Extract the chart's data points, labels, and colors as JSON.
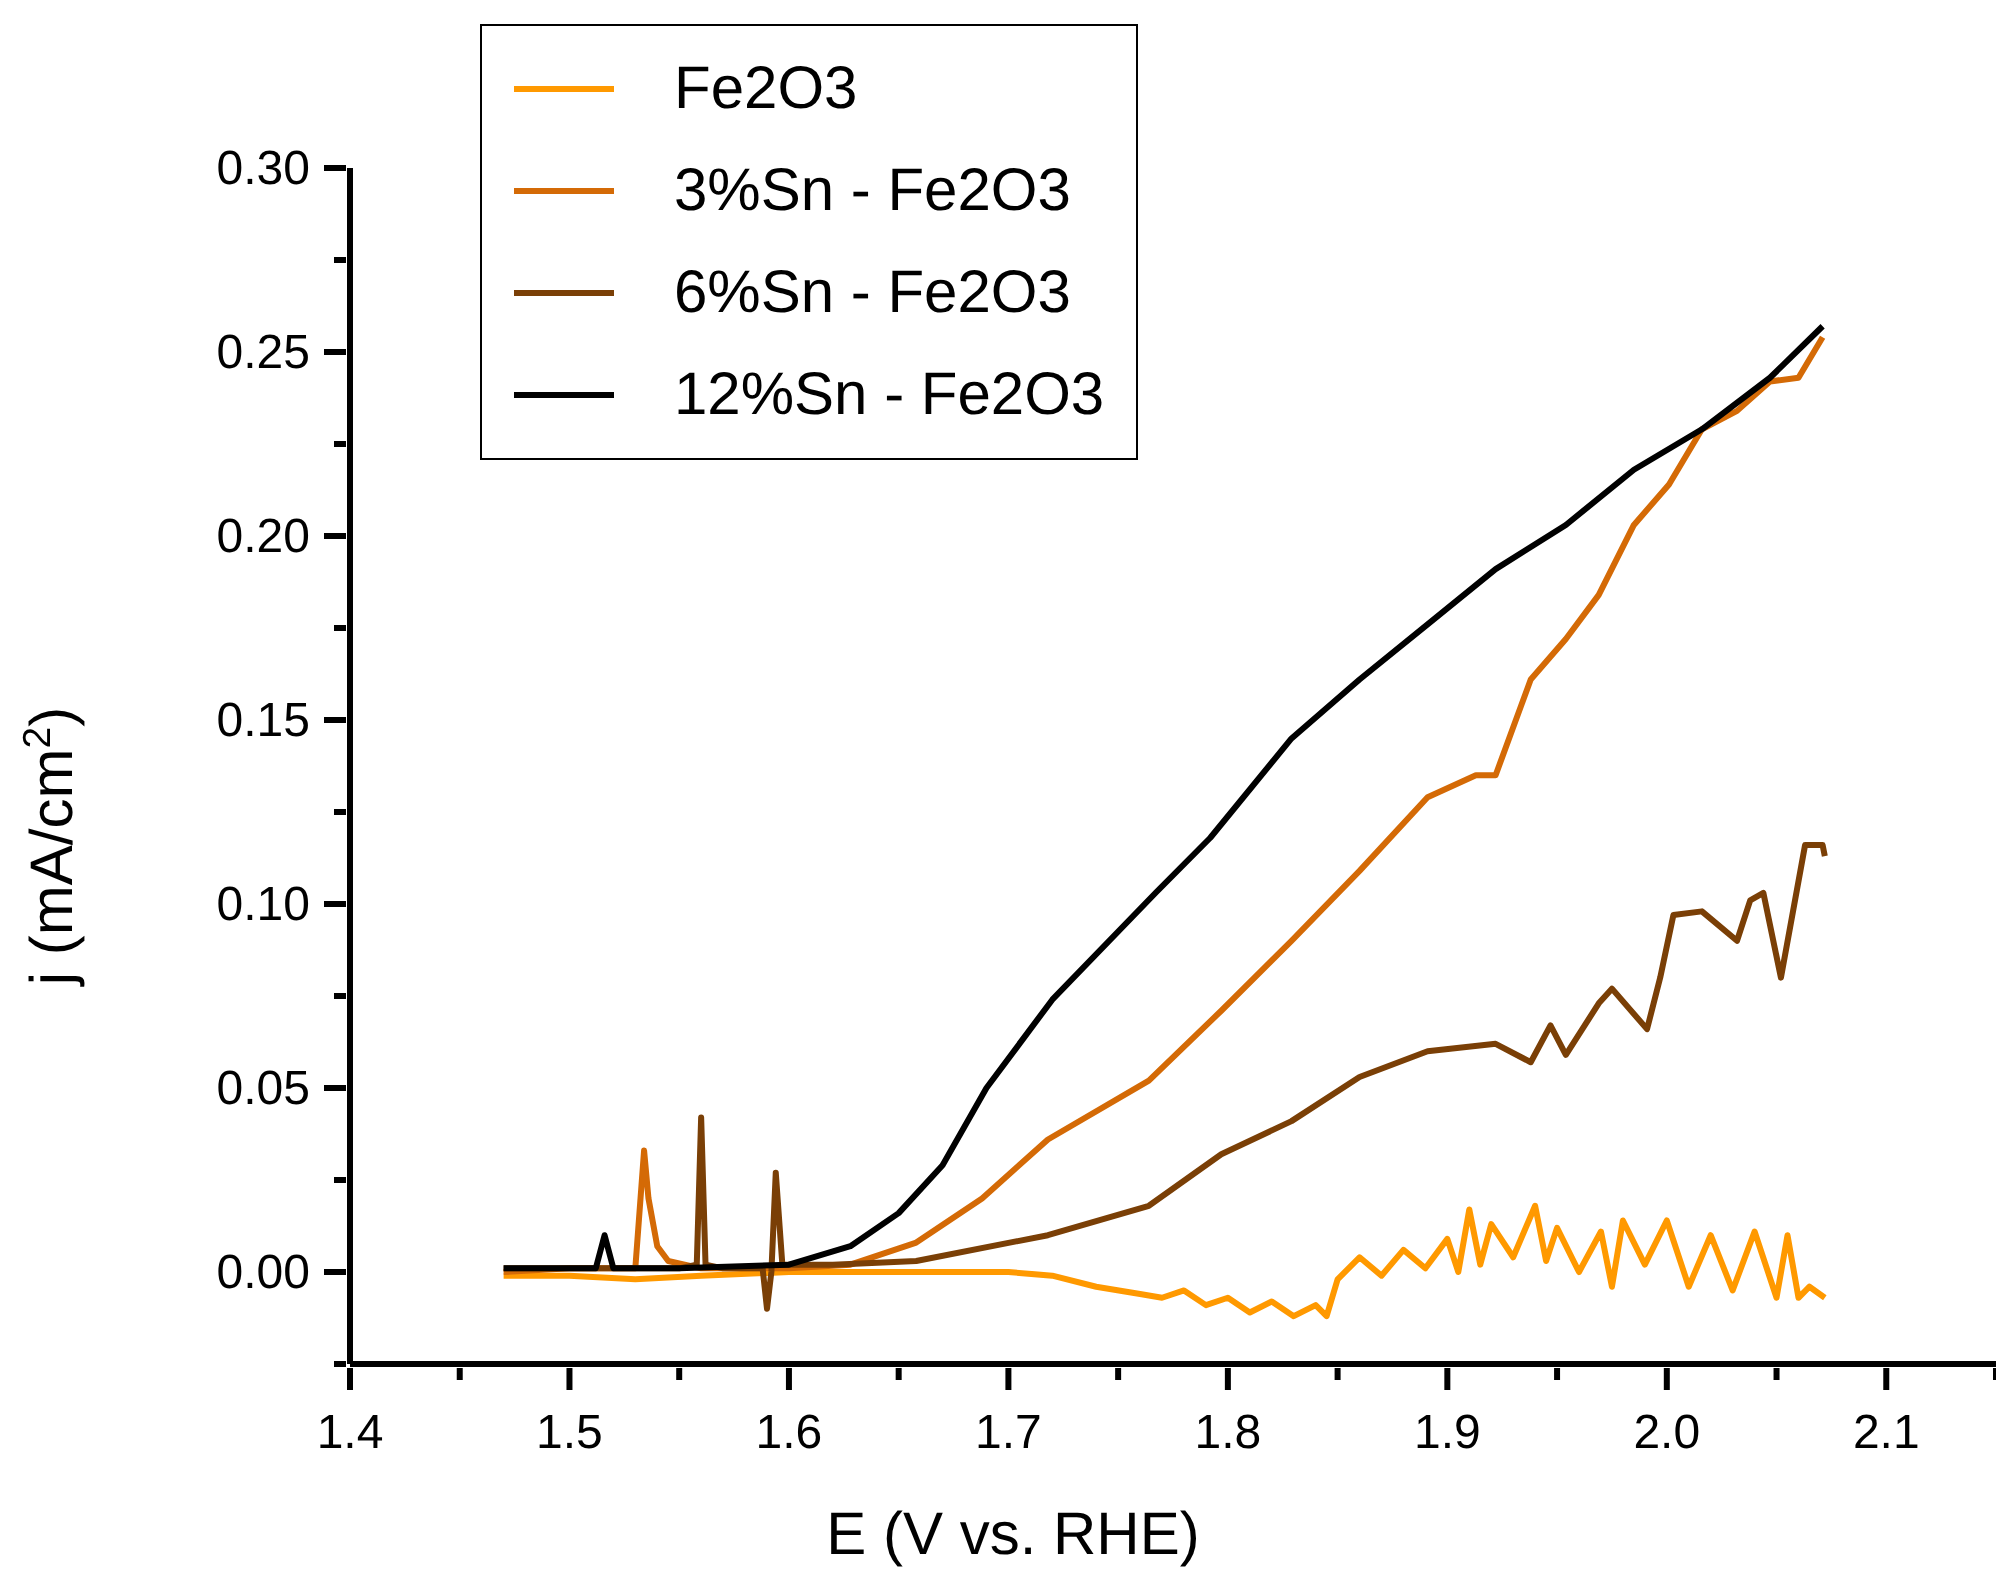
{
  "chart_data": {
    "type": "line",
    "xlabel": "E (V vs. RHE)",
    "ylabel": "j (mA/cm$^{2}$)",
    "xlim": [
      1.4,
      2.15
    ],
    "ylim": [
      -0.025,
      0.3
    ],
    "xticks": [
      1.4,
      {
        "value": 1.45,
        "label": null
      },
      1.5,
      {
        "value": 1.55,
        "label": null
      },
      1.6,
      {
        "value": 1.65,
        "label": null
      },
      1.7,
      {
        "value": 1.75,
        "label": null
      },
      1.8,
      {
        "value": 1.85,
        "label": null
      },
      1.9,
      {
        "value": 1.95,
        "label": null
      },
      {
        "value": 2.0,
        "label": "2.0"
      },
      {
        "value": 2.05,
        "label": null
      },
      2.1,
      {
        "value": 2.15,
        "label": null
      }
    ],
    "yticks": [
      {
        "value": -0.025,
        "label": null
      },
      {
        "value": 0,
        "label": "0.00"
      },
      {
        "value": 0.025,
        "label": null
      },
      0.05,
      {
        "value": 0.075,
        "label": null
      },
      {
        "value": 0.1,
        "label": "0.10"
      },
      {
        "value": 0.125,
        "label": null
      },
      0.15,
      {
        "value": 0.175,
        "label": null
      },
      {
        "value": 0.2,
        "label": "0.20"
      },
      {
        "value": 0.225,
        "label": null
      },
      0.25,
      {
        "value": 0.275,
        "label": null
      },
      {
        "value": 0.3,
        "label": "0.30"
      }
    ],
    "legend": "top",
    "marker": "none",
    "line_style": "solid",
    "series": [
      {
        "name": "Fe2O3",
        "color": "#ff9900",
        "x": [
          1.47,
          1.5,
          1.53,
          1.56,
          1.6,
          1.65,
          1.7,
          1.72,
          1.74,
          1.76,
          1.77,
          1.78,
          1.79,
          1.8,
          1.81,
          1.82,
          1.83,
          1.84,
          1.845,
          1.85,
          1.86,
          1.87,
          1.88,
          1.89,
          1.9,
          1.905,
          1.91,
          1.915,
          1.92,
          1.93,
          1.94,
          1.945,
          1.95,
          1.96,
          1.97,
          1.975,
          1.98,
          1.99,
          2.0,
          2.01,
          2.02,
          2.03,
          2.04,
          2.05,
          2.055,
          2.06,
          2.065,
          2.072
        ],
        "values": [
          -0.001,
          -0.001,
          -0.002,
          -0.001,
          0.0,
          0.0,
          0.0,
          -0.001,
          -0.004,
          -0.006,
          -0.007,
          -0.005,
          -0.009,
          -0.007,
          -0.011,
          -0.008,
          -0.012,
          -0.009,
          -0.012,
          -0.002,
          0.004,
          -0.001,
          0.006,
          0.001,
          0.009,
          0.0,
          0.017,
          0.002,
          0.013,
          0.004,
          0.018,
          0.003,
          0.012,
          0.0,
          0.011,
          -0.004,
          0.014,
          0.002,
          0.014,
          -0.004,
          0.01,
          -0.005,
          0.011,
          -0.007,
          0.01,
          -0.007,
          -0.004,
          -0.007
        ]
      },
      {
        "name": "3%Sn - Fe2O3",
        "color": "#d46a06",
        "x": [
          1.47,
          1.5,
          1.53,
          1.534,
          1.536,
          1.54,
          1.545,
          1.56,
          1.6,
          1.628,
          1.658,
          1.688,
          1.718,
          1.764,
          1.797,
          1.829,
          1.86,
          1.891,
          1.913,
          1.922,
          1.938,
          1.954,
          1.969,
          1.985,
          2.001,
          2.016,
          2.032,
          2.047,
          2.06,
          2.071
        ],
        "values": [
          0.0,
          0.001,
          0.001,
          0.033,
          0.02,
          0.007,
          0.003,
          0.001,
          0.001,
          0.002,
          0.008,
          0.02,
          0.036,
          0.052,
          0.071,
          0.09,
          0.109,
          0.129,
          0.135,
          0.135,
          0.161,
          0.172,
          0.184,
          0.203,
          0.214,
          0.229,
          0.234,
          0.242,
          0.243,
          0.254
        ]
      },
      {
        "name": "6%Sn - Fe2O3",
        "color": "#7a3f06",
        "x": [
          1.47,
          1.5,
          1.55,
          1.558,
          1.56,
          1.562,
          1.57,
          1.588,
          1.59,
          1.592,
          1.594,
          1.597,
          1.62,
          1.658,
          1.718,
          1.764,
          1.797,
          1.829,
          1.86,
          1.891,
          1.922,
          1.938,
          1.947,
          1.954,
          1.969,
          1.975,
          1.991,
          1.997,
          2.003,
          2.016,
          2.032,
          2.038,
          2.044,
          2.052,
          2.063,
          2.071,
          2.072
        ],
        "values": [
          0.001,
          0.001,
          0.001,
          0.002,
          0.042,
          0.002,
          0.001,
          0.001,
          -0.01,
          0.0,
          0.027,
          0.002,
          0.002,
          0.003,
          0.01,
          0.018,
          0.032,
          0.041,
          0.053,
          0.06,
          0.062,
          0.057,
          0.067,
          0.059,
          0.073,
          0.077,
          0.066,
          0.08,
          0.097,
          0.098,
          0.09,
          0.101,
          0.103,
          0.08,
          0.116,
          0.116,
          0.113
        ]
      },
      {
        "name": "12%Sn - Fe2O3",
        "color": "#000000",
        "x": [
          1.47,
          1.5,
          1.512,
          1.516,
          1.52,
          1.55,
          1.6,
          1.628,
          1.65,
          1.67,
          1.69,
          1.72,
          1.767,
          1.792,
          1.829,
          1.86,
          1.891,
          1.922,
          1.954,
          1.985,
          2.016,
          2.047,
          2.071
        ],
        "values": [
          0.001,
          0.001,
          0.001,
          0.01,
          0.001,
          0.001,
          0.002,
          0.007,
          0.016,
          0.029,
          0.05,
          0.074,
          0.103,
          0.118,
          0.145,
          0.161,
          0.176,
          0.191,
          0.203,
          0.218,
          0.229,
          0.243,
          0.257
        ]
      }
    ]
  }
}
